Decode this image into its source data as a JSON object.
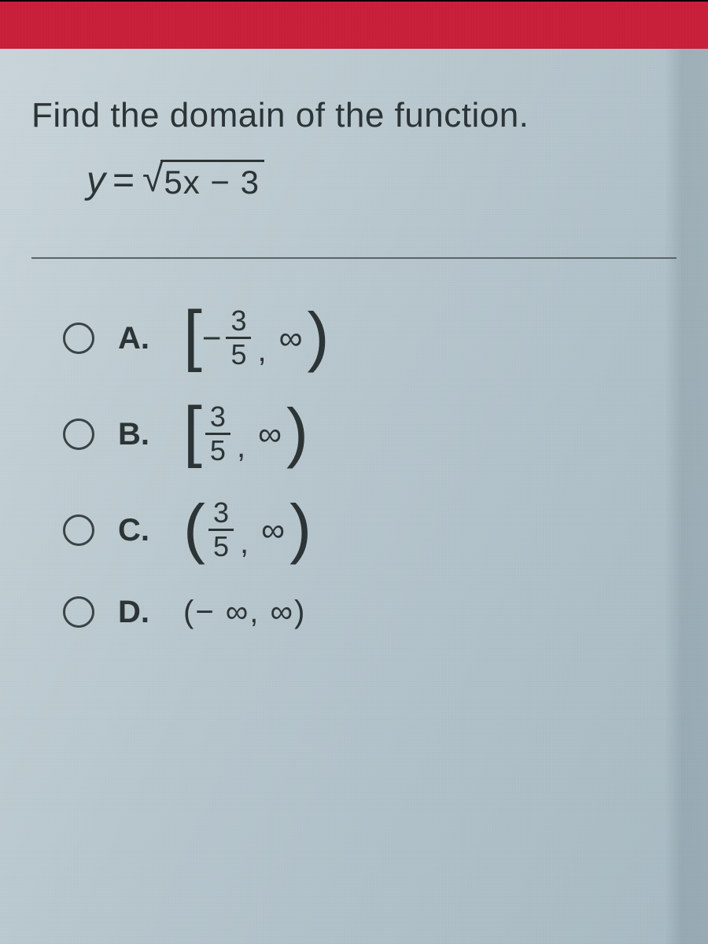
{
  "colors": {
    "header_bar": "#c81f3a",
    "screen_border": "#000000",
    "text": "#2c3436",
    "divider": "#5b6568",
    "radio_border": "#3a4345",
    "bg_gradient_from": "#c9d5da",
    "bg_gradient_mid": "#b7c6cd",
    "bg_gradient_to": "#a7b9c2"
  },
  "typography": {
    "prompt_fontsize": 44,
    "equation_fontsize": 48,
    "choice_label_fontsize": 40,
    "interval_fontsize": 42,
    "frac_fontsize": 36,
    "bracket_fontsize": 86,
    "font_family": "Arial"
  },
  "question": {
    "prompt": "Find the domain of the function.",
    "equation": {
      "lhs": "y",
      "operator": "=",
      "radicand": "5x − 3"
    }
  },
  "choices": {
    "a": {
      "label": "A.",
      "open_delim": "[",
      "neg": "−",
      "frac_num": "3",
      "frac_den": "5",
      "sep": ",",
      "inf": "∞",
      "close_delim": ")"
    },
    "b": {
      "label": "B.",
      "open_delim": "[",
      "frac_num": "3",
      "frac_den": "5",
      "sep": ",",
      "inf": "∞",
      "close_delim": ")"
    },
    "c": {
      "label": "C.",
      "open_delim": "(",
      "frac_num": "3",
      "frac_den": "5",
      "sep": ",",
      "inf": "∞",
      "close_delim": ")"
    },
    "d": {
      "label": "D.",
      "interval_plain": "(− ∞, ∞)"
    }
  }
}
